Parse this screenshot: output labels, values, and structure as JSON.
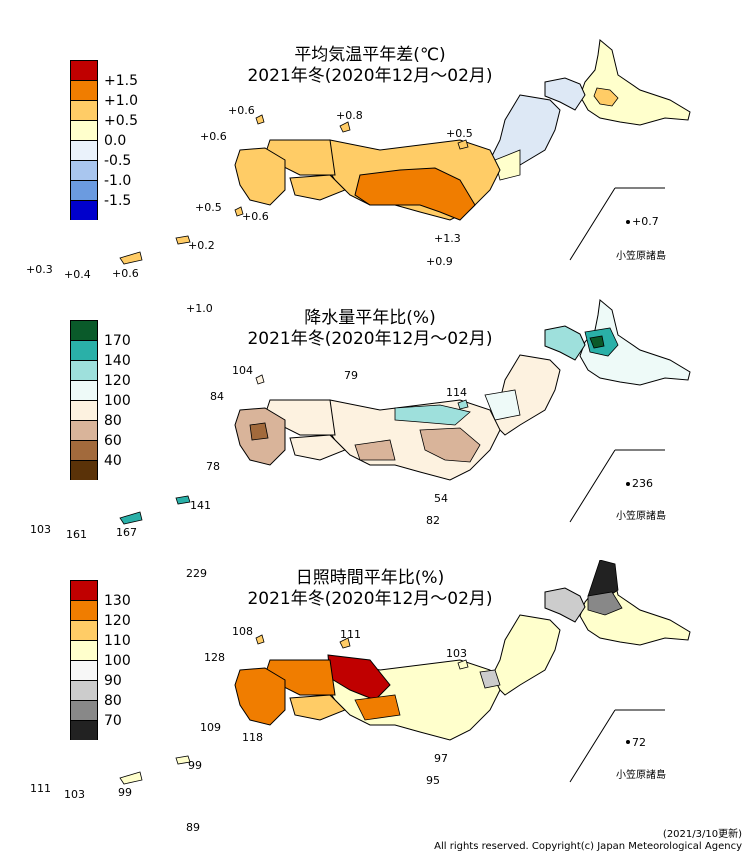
{
  "panels": [
    {
      "title1": "平均気温平年差(℃)",
      "title2": "2021年冬(2020年12月～02月)",
      "legend": [
        "+1.5",
        "+1.0",
        "+0.5",
        "0.0",
        "-0.5",
        "-1.0",
        "-1.5"
      ],
      "legend_colors": [
        "#c00000",
        "#f07d00",
        "#ffcc66",
        "#ffffcc",
        "#dde8f5",
        "#6b9be0",
        "#0000cc"
      ],
      "values": {
        "v_oki": "+0.6",
        "v_tsushima": "+0.6",
        "v_sado": "+0.8",
        "v_awashima": "+0.5",
        "v_goto": "+0.5",
        "v_koshiki": "+0.6",
        "v_izu": "+1.3",
        "v_hachijo": "+0.9",
        "v_chichijima": "+0.7",
        "v_yakushima": "+0.2",
        "v_yonaguni": "+0.3",
        "v_ishigaki": "+0.4",
        "v_okinawa": "+0.6",
        "v_minami": "+1.0"
      },
      "ogasawara": "小笠原諸島",
      "map_colors": {
        "west": "#ffcc66",
        "kanto": "#f07d00",
        "tohoku": "#ffffcc",
        "hokkaido": "#ffffcc",
        "hokkaido_e": "#ffcc66",
        "north": "#dde8f5"
      }
    },
    {
      "title1": "降水量平年比(%)",
      "title2": "2021年冬(2020年12月～02月)",
      "legend": [
        "170",
        "140",
        "120",
        "100",
        "80",
        "60",
        "40"
      ],
      "legend_colors": [
        "#0a5a2a",
        "#2ab0a8",
        "#9ee0dc",
        "#eefaf8",
        "#fdf2e0",
        "#d9b49a",
        "#a26a3c",
        "#5a3208"
      ],
      "values": {
        "v_oki": "104",
        "v_sado": "79",
        "v_awashima": "114",
        "v_tsushima": "84",
        "v_koshiki": "78",
        "v_izu": "54",
        "v_hachijo": "82",
        "v_chichijima": "236",
        "v_yakushima": "141",
        "v_yonaguni": "103",
        "v_ishigaki": "161",
        "v_okinawa": "167",
        "v_minami": "229"
      },
      "ogasawara": "小笠原諸島"
    },
    {
      "title1": "日照時間平年比(%)",
      "title2": "2021年冬(2020年12月～02月)",
      "legend": [
        "130",
        "120",
        "110",
        "100",
        "90",
        "80",
        "70"
      ],
      "legend_colors": [
        "#c00000",
        "#f07d00",
        "#ffcc66",
        "#ffffcc",
        "#f7f7f7",
        "#cccccc",
        "#888888",
        "#222222"
      ],
      "values": {
        "v_oki": "108",
        "v_sado": "111",
        "v_awashima": "103",
        "v_tsushima": "128",
        "v_goto": "109",
        "v_koshiki": "118",
        "v_izu": "97",
        "v_hachijo": "95",
        "v_chichijima": "72",
        "v_yakushima": "99",
        "v_yonaguni": "111",
        "v_ishigaki": "103",
        "v_okinawa": "99",
        "v_minami": "89"
      },
      "ogasawara": "小笠原諸島"
    }
  ],
  "footer": {
    "date": "(2021/3/10更新)",
    "copyright": "All rights reserved. Copyright(c) Japan Meteorological Agency"
  }
}
